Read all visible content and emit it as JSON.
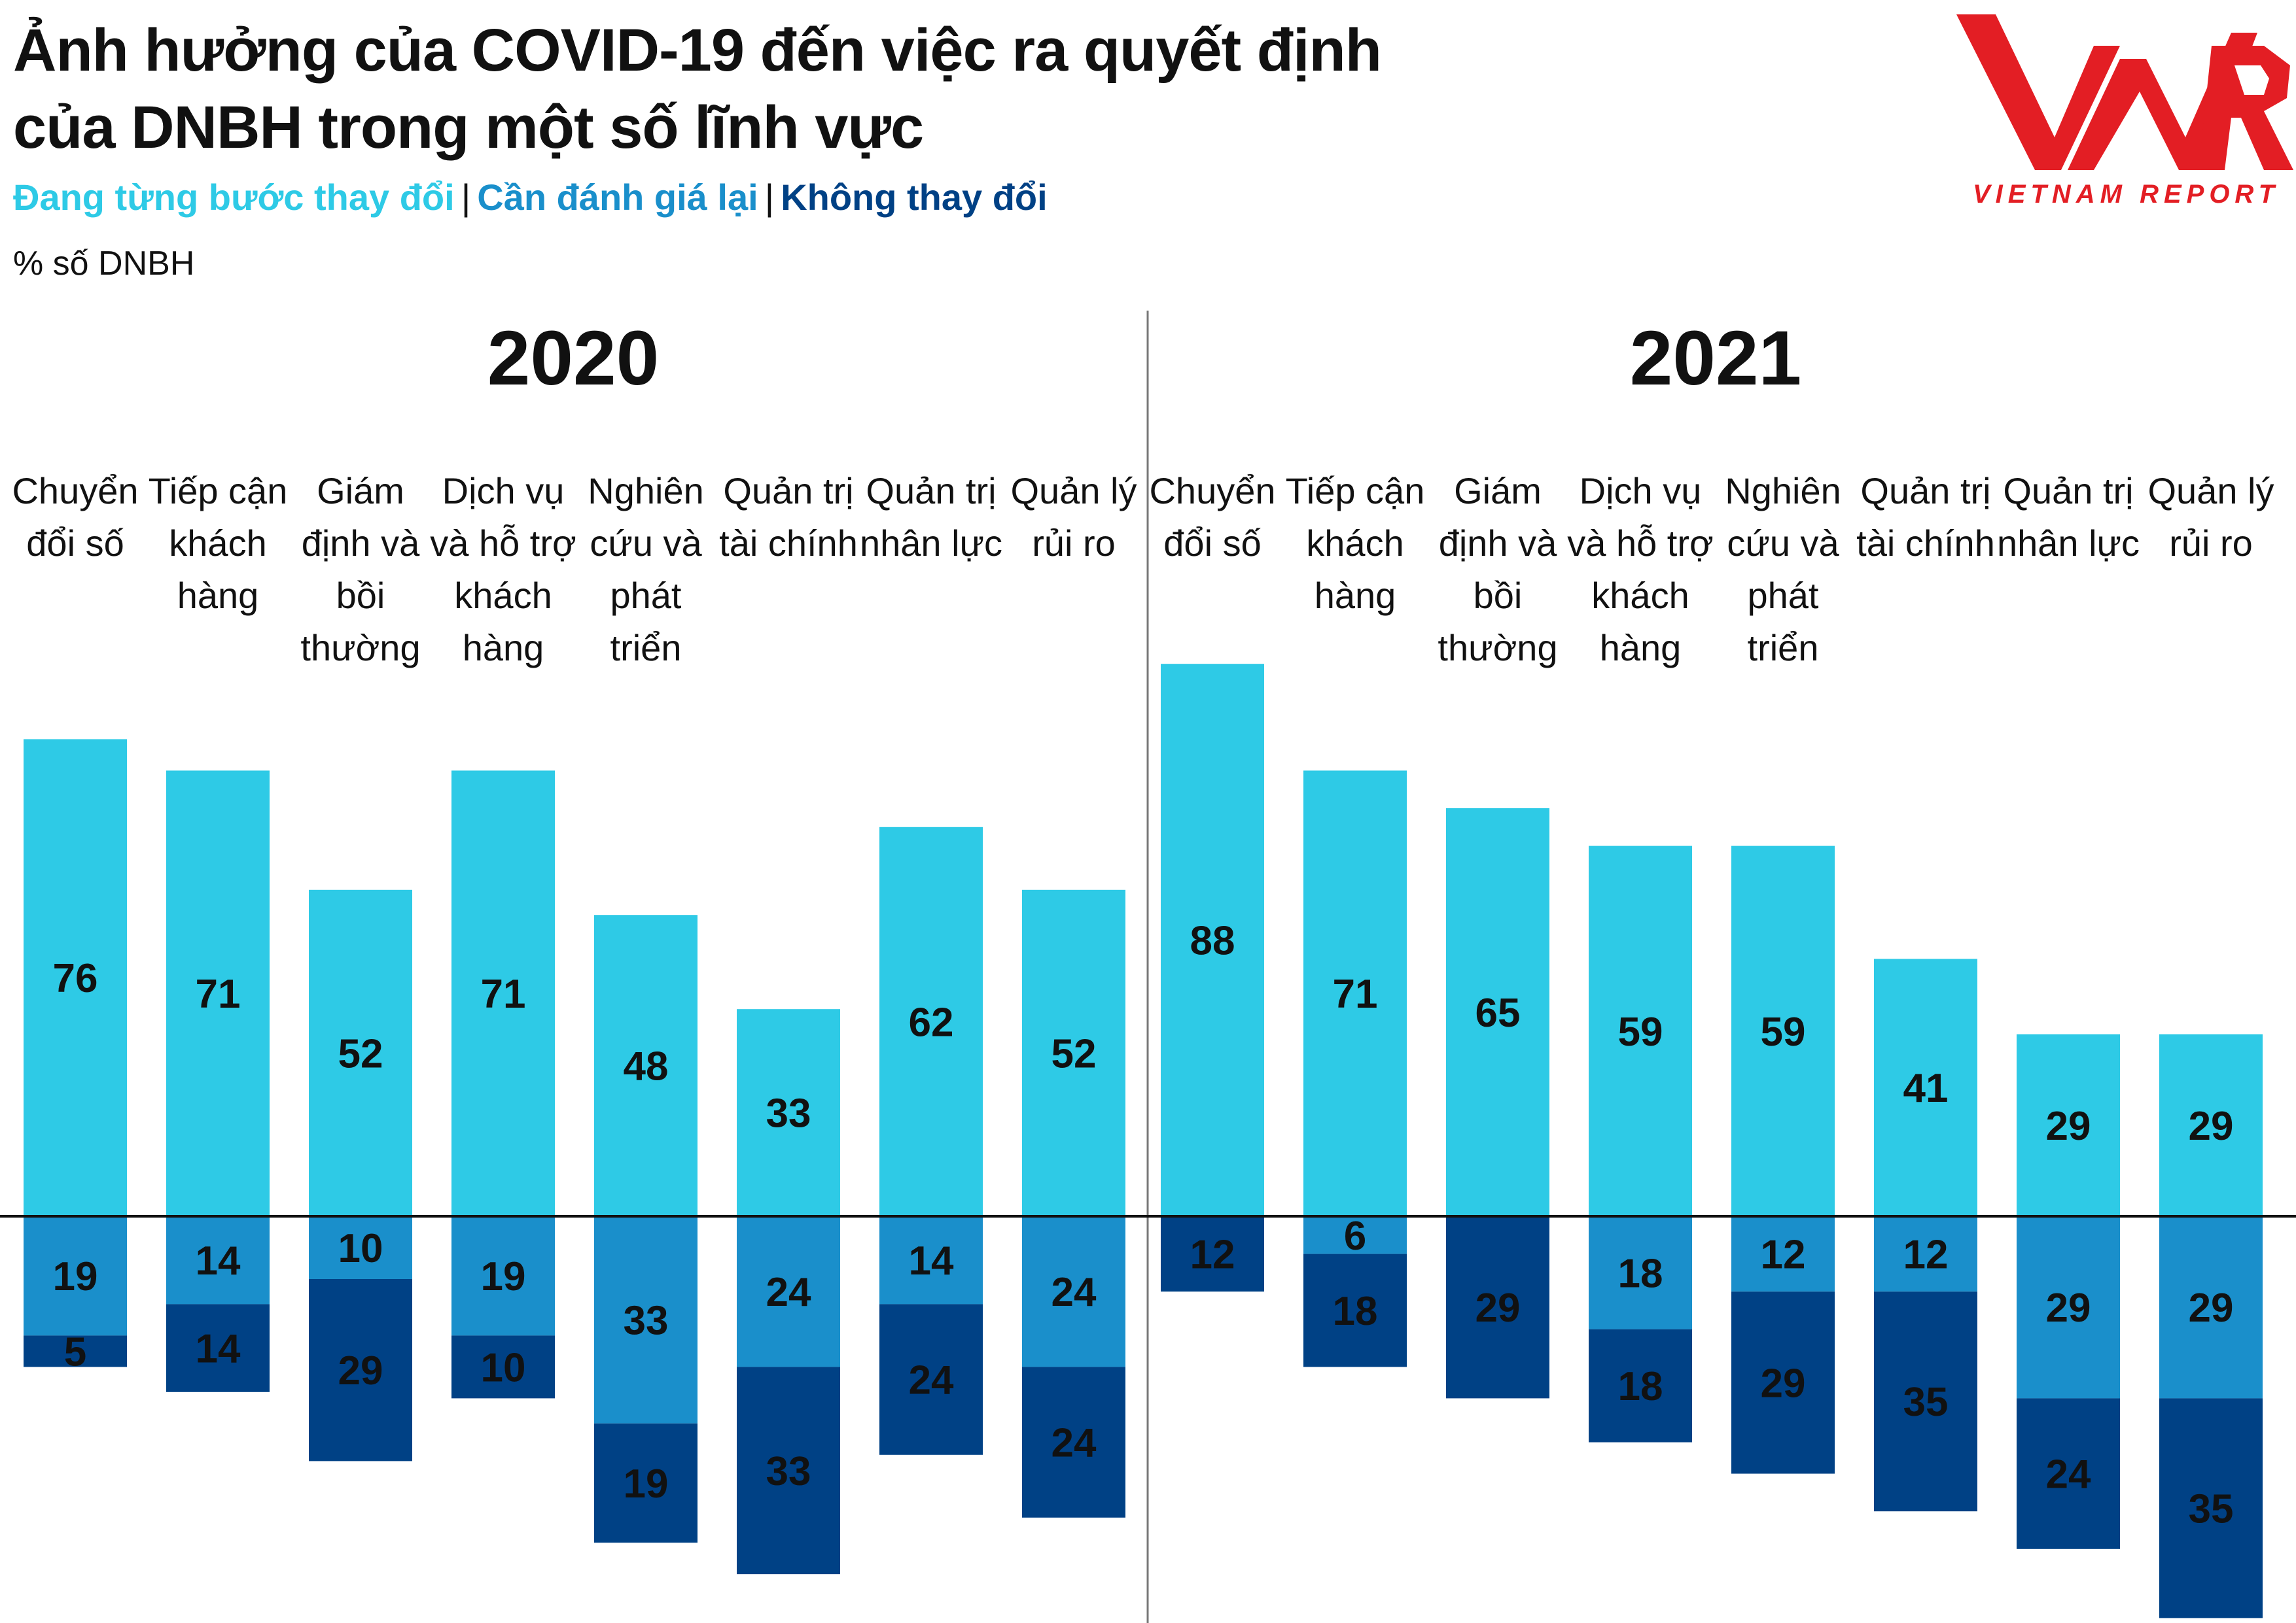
{
  "header": {
    "title_line1": "Ảnh hưởng của COVID-19 đến việc ra quyết định",
    "title_line2": "của DNBH trong một số lĩnh vực",
    "unit": "% số DNBH"
  },
  "logo": {
    "brand": "VNR",
    "tagline": "VIETNAM REPORT"
  },
  "colors": {
    "changing": "#2ecae6",
    "reassess": "#1a8fcb",
    "unchanged": "#004185",
    "brand_red": "#e31e24"
  },
  "chart_data": {
    "type": "bar",
    "subtype": "diverging-stacked",
    "title": "Ảnh hưởng của COVID-19 đến việc ra quyết định của DNBH trong một số lĩnh vực",
    "ylabel": "% số DNBH",
    "legend": [
      {
        "name": "Đang từng bước thay đổi",
        "color": "#2ecae6"
      },
      {
        "name": "Cần đánh giá lại",
        "color": "#1a8fcb"
      },
      {
        "name": "Không thay đổi",
        "color": "#004185"
      }
    ],
    "ylim": [
      -70,
      90
    ],
    "panels": [
      {
        "year": "2020",
        "categories": [
          [
            "Chuyển",
            "đổi số"
          ],
          [
            "Tiếp cận",
            "khách",
            "hàng"
          ],
          [
            "Giám",
            "định và",
            "bồi",
            "thường"
          ],
          [
            "Dịch vụ",
            "và hỗ trợ",
            "khách",
            "hàng"
          ],
          [
            "Nghiên",
            "cứu và",
            "phát",
            "triển"
          ],
          [
            "Quản trị",
            "tài chính"
          ],
          [
            "Quản trị",
            "nhân lực"
          ],
          [
            "Quản lý",
            "rủi ro"
          ]
        ],
        "series": [
          {
            "name": "Đang từng bước thay đổi",
            "values": [
              76,
              71,
              52,
              71,
              48,
              33,
              62,
              52
            ]
          },
          {
            "name": "Cần đánh giá lại",
            "values": [
              19,
              14,
              10,
              19,
              33,
              24,
              14,
              24
            ]
          },
          {
            "name": "Không thay đổi",
            "values": [
              5,
              14,
              29,
              10,
              19,
              33,
              24,
              24
            ]
          }
        ]
      },
      {
        "year": "2021",
        "categories": [
          [
            "Chuyển",
            "đổi số"
          ],
          [
            "Tiếp cận",
            "khách",
            "hàng"
          ],
          [
            "Giám",
            "định và",
            "bồi",
            "thường"
          ],
          [
            "Dịch vụ",
            "và hỗ trợ",
            "khách",
            "hàng"
          ],
          [
            "Nghiên",
            "cứu và",
            "phát",
            "triển"
          ],
          [
            "Quản trị",
            "tài chính"
          ],
          [
            "Quản trị",
            "nhân lực"
          ],
          [
            "Quản lý",
            "rủi ro"
          ]
        ],
        "series": [
          {
            "name": "Đang từng bước thay đổi",
            "values": [
              88,
              71,
              65,
              59,
              59,
              41,
              29,
              29
            ]
          },
          {
            "name": "Cần đánh giá lại",
            "values": [
              0,
              6,
              0,
              18,
              12,
              12,
              29,
              29
            ]
          },
          {
            "name": "Không thay đổi",
            "values": [
              12,
              18,
              29,
              18,
              29,
              35,
              24,
              35
            ]
          }
        ]
      }
    ]
  }
}
